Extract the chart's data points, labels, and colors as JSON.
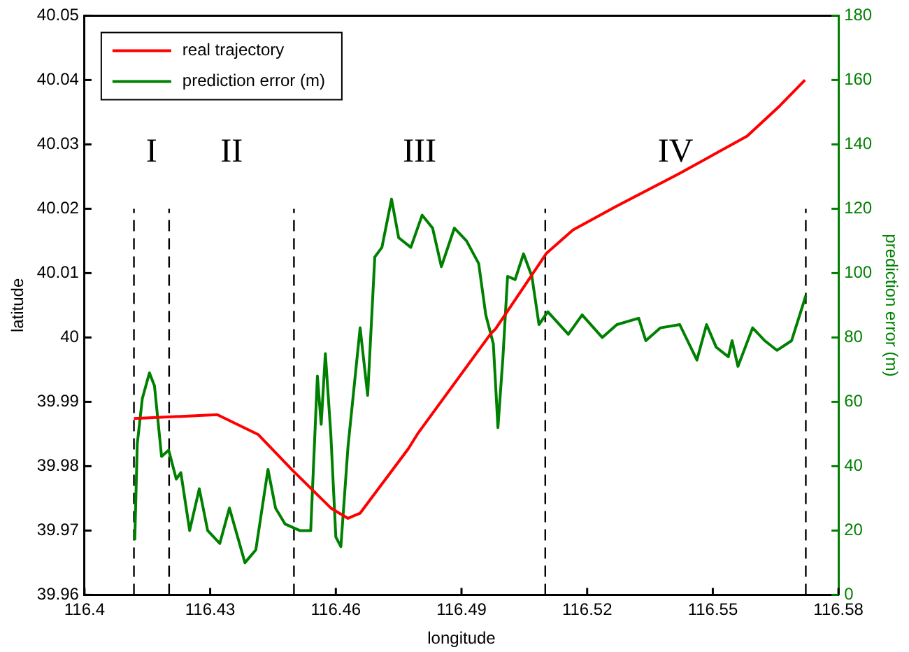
{
  "chart_data": {
    "type": "line",
    "xlabel": "longitude",
    "ylabel": "latitude",
    "y2label": "prediction error (m)",
    "xlim": [
      116.4,
      116.58
    ],
    "xticks": [
      116.4,
      116.43,
      116.46,
      116.49,
      116.52,
      116.55,
      116.58
    ],
    "ylim": [
      39.96,
      40.05
    ],
    "yticks": [
      39.96,
      39.97,
      39.98,
      39.99,
      40,
      40.01,
      40.02,
      40.03,
      40.04,
      40.05
    ],
    "y2lim": [
      0,
      180
    ],
    "y2ticks": [
      0,
      20,
      40,
      60,
      80,
      100,
      120,
      140,
      160,
      180
    ],
    "grid": false,
    "legend": "top left",
    "marker": "none",
    "annotations": [
      "I",
      "II",
      "III",
      "IV"
    ],
    "series": [
      {
        "name": "real trajectory",
        "color": "#ff0000",
        "x": [
          116.4118,
          116.4317,
          116.4415,
          116.4496,
          116.4588,
          116.4629,
          116.4658,
          116.4773,
          116.4797,
          116.497,
          116.4981,
          116.5103,
          116.5166,
          116.527,
          116.5421,
          116.5582,
          116.566,
          116.572
        ],
        "values": [
          39.9874,
          39.988,
          39.9849,
          39.9794,
          39.9735,
          39.9719,
          39.9727,
          39.9827,
          39.9852,
          40.0006,
          40.0013,
          40.0131,
          40.0167,
          40.0204,
          40.0255,
          40.0313,
          40.036,
          40.04
        ]
      },
      {
        "name": "prediction error (m)",
        "color": "#008000",
        "axis": "y2",
        "x": [
          116.412,
          116.4126,
          116.4138,
          116.4155,
          116.4167,
          116.4184,
          116.4201,
          116.4219,
          116.423,
          116.4251,
          116.4274,
          116.4294,
          116.4323,
          116.4346,
          116.4383,
          116.4409,
          116.4438,
          116.4456,
          116.4479,
          116.4514,
          116.454,
          116.4556,
          116.4565,
          116.4575,
          116.4588,
          116.46,
          116.4612,
          116.4629,
          116.4658,
          116.4676,
          116.4693,
          116.471,
          116.4733,
          116.475,
          116.4779,
          116.4806,
          116.4831,
          116.4852,
          116.4883,
          116.4912,
          116.4941,
          116.4958,
          116.4976,
          116.4987,
          116.4999,
          116.501,
          116.5028,
          116.5048,
          116.5068,
          116.5085,
          116.5106,
          116.5155,
          116.5188,
          116.5236,
          116.5271,
          116.5323,
          116.534,
          116.5375,
          116.5421,
          116.5462,
          116.5485,
          116.5508,
          116.5537,
          116.5546,
          116.556,
          116.5595,
          116.5624,
          116.5653,
          116.5688,
          116.5705,
          116.5722
        ],
        "values": [
          17,
          47,
          61,
          69,
          65,
          43,
          45,
          36,
          38,
          20,
          33,
          20,
          16,
          27,
          10,
          14,
          39,
          27,
          22,
          20,
          20,
          68,
          53,
          75,
          50,
          18,
          15,
          46,
          83,
          62,
          105,
          108,
          123,
          111,
          108,
          118,
          114,
          102,
          114,
          110,
          103,
          87,
          78,
          52,
          74,
          99,
          98,
          106,
          99,
          84,
          88,
          81,
          87,
          80,
          84,
          86,
          79,
          83,
          84,
          73,
          84,
          77,
          74,
          79,
          71,
          83,
          79,
          76,
          79,
          86,
          93
        ]
      },
      {
        "type": "line",
        "color": "#000000",
        "line_style": "dashed",
        "x": [
          116.4118,
          116.4118
        ],
        "values": [
          39.96,
          40.02
        ]
      },
      {
        "type": "line",
        "color": "#000000",
        "line_style": "dashed",
        "x": [
          116.4202,
          116.4202
        ],
        "values": [
          39.96,
          40.02
        ]
      },
      {
        "type": "line",
        "color": "#000000",
        "line_style": "dashed",
        "x": [
          116.45,
          116.45
        ],
        "values": [
          39.96,
          40.02
        ]
      },
      {
        "type": "line",
        "color": "#000000",
        "line_style": "dashed",
        "x": [
          116.51,
          116.51
        ],
        "values": [
          39.96,
          40.02
        ]
      },
      {
        "type": "line",
        "color": "#000000",
        "line_style": "dashed",
        "x": [
          116.5722,
          116.5722
        ],
        "values": [
          39.96,
          40.02
        ]
      }
    ]
  }
}
